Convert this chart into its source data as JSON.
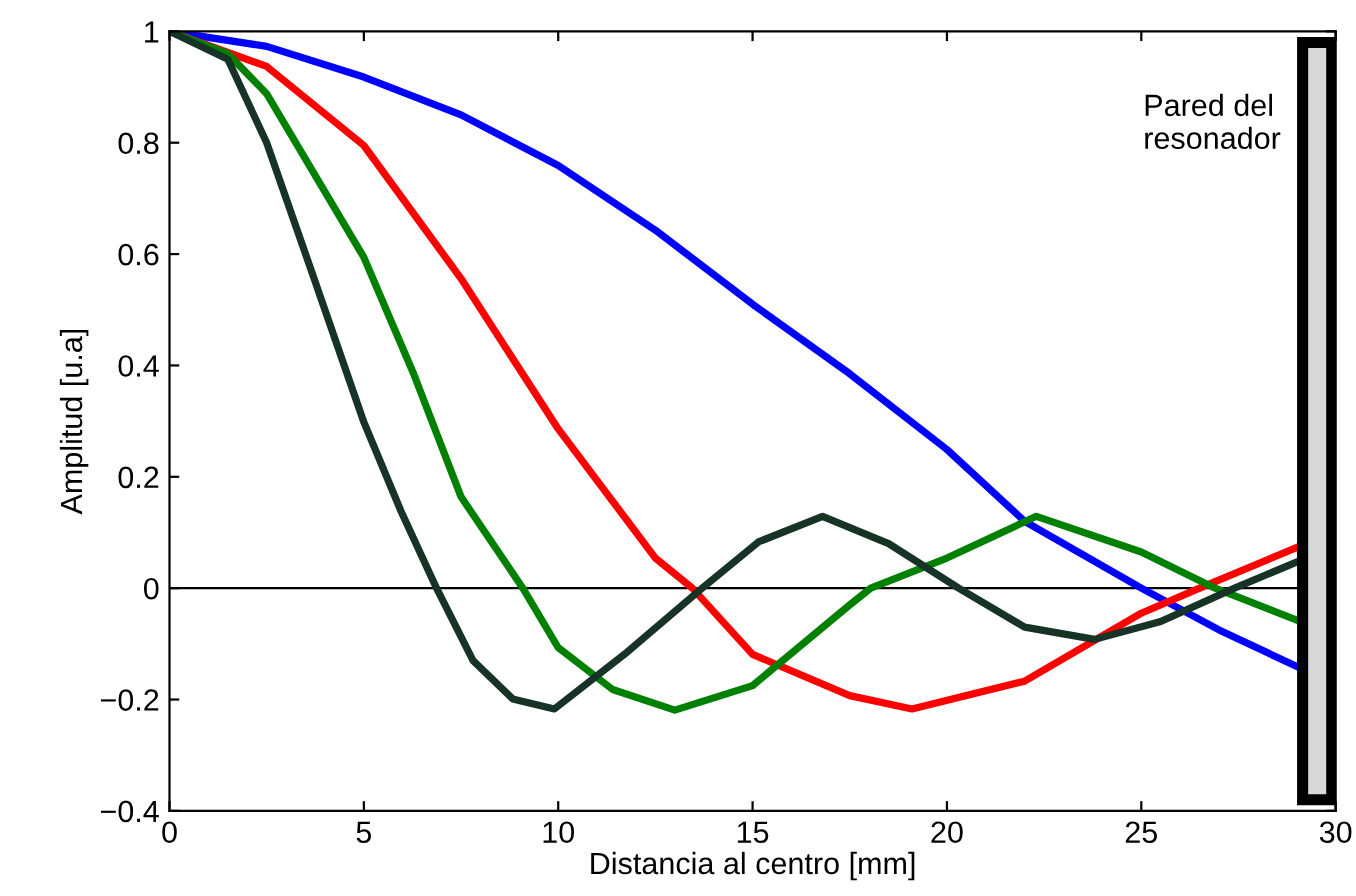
{
  "chart_data": {
    "type": "line",
    "xlabel": "Distancia al centro [mm]",
    "ylabel": "Amplitud [u.a]",
    "xlim": [
      0,
      30
    ],
    "xticks": [
      0,
      5,
      10,
      15,
      20,
      25,
      30
    ],
    "ylim": [
      -0.4,
      1
    ],
    "yticks": [
      {
        "value": -0.4,
        "label": "−0.4"
      },
      {
        "value": -0.2,
        "label": "−0.2"
      },
      0,
      0.2,
      0.4,
      0.6,
      0.8,
      1
    ],
    "grid": false,
    "legend": false,
    "line_style": "solid",
    "marker": "none",
    "ref_lines": [
      {
        "axis": "y",
        "value": 0,
        "color": "#000000"
      }
    ],
    "annotations": [
      "Pared del\nresonador"
    ],
    "series": [
      {
        "color": "#0000ff",
        "x": [
          0,
          2.5,
          5,
          7.5,
          10,
          12.5,
          15,
          17.5,
          20,
          22,
          25,
          27,
          29.1
        ],
        "values": [
          1,
          0.973,
          0.918,
          0.85,
          0.759,
          0.643,
          0.51,
          0.385,
          0.249,
          0.12,
          0,
          -0.075,
          -0.144
        ]
      },
      {
        "color": "#ff0000",
        "x": [
          0,
          2.5,
          5,
          7.5,
          10,
          12.5,
          13.45,
          15,
          17.5,
          19.1,
          22,
          25,
          26.5,
          29.1
        ],
        "values": [
          1,
          0.937,
          0.795,
          0.556,
          0.286,
          0.054,
          0,
          -0.119,
          -0.193,
          -0.217,
          -0.167,
          -0.045,
          0,
          0.076
        ]
      },
      {
        "color": "#008000",
        "x": [
          0,
          1.5,
          2.5,
          5,
          6.28,
          7.5,
          9.09,
          10,
          11.4,
          13,
          15,
          17.5,
          18.04,
          20,
          22.3,
          25,
          26.9,
          29.1
        ],
        "values": [
          1,
          0.96,
          0.888,
          0.594,
          0.385,
          0.164,
          0,
          -0.107,
          -0.182,
          -0.219,
          -0.175,
          -0.03,
          0,
          0.054,
          0.129,
          0.065,
          0,
          -0.06
        ]
      },
      {
        "color": "#173325",
        "x": [
          0,
          1.5,
          2.5,
          3.72,
          5,
          5.95,
          6.87,
          7.81,
          8.83,
          9.9,
          11.7,
          13.7,
          15.15,
          16.8,
          18.5,
          20.3,
          22,
          23.8,
          25.5,
          27.4,
          29.1
        ],
        "values": [
          1,
          0.95,
          0.8,
          0.556,
          0.298,
          0.139,
          0,
          -0.13,
          -0.199,
          -0.217,
          -0.119,
          0,
          0.083,
          0.129,
          0.08,
          0,
          -0.07,
          -0.092,
          -0.06,
          0,
          0.05
        ]
      }
    ]
  }
}
